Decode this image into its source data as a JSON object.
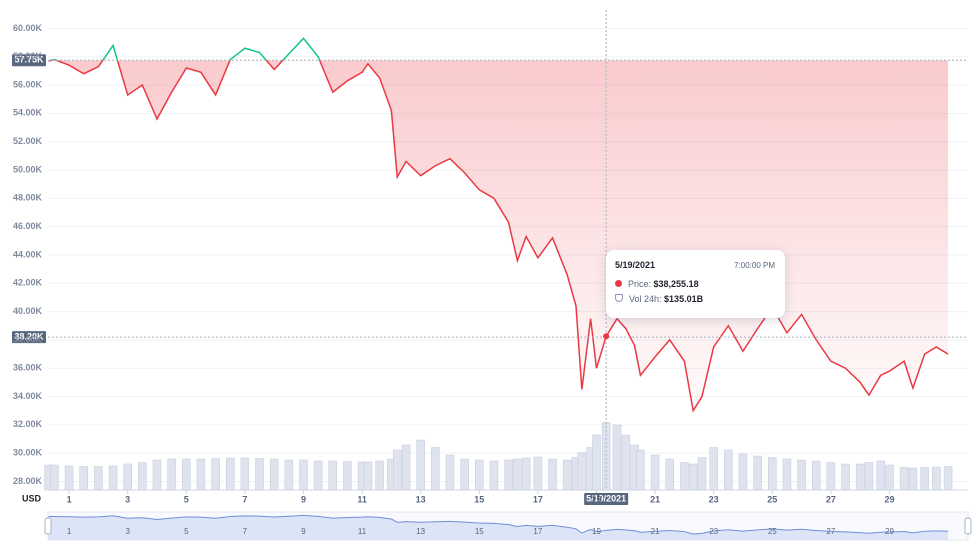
{
  "chart_data": {
    "type": "line",
    "y_axis_label": "USD",
    "x": [
      0.3,
      0.5,
      1,
      1.5,
      2,
      2.5,
      3,
      3.5,
      4,
      4.5,
      5,
      5.5,
      6,
      6.5,
      7,
      7.5,
      8,
      8.5,
      9,
      9.5,
      10,
      10.5,
      11,
      11.2,
      11.6,
      12,
      12.2,
      12.5,
      13,
      13.5,
      14,
      14.5,
      15,
      15.5,
      16,
      16.3,
      16.6,
      17,
      17.5,
      18,
      18.3,
      18.5,
      18.8,
      19,
      19.33,
      19.7,
      20,
      20.3,
      20.5,
      21,
      21.5,
      22,
      22.3,
      22.6,
      23,
      23.5,
      24,
      24.5,
      25,
      25.5,
      26,
      26.5,
      27,
      27.5,
      28,
      28.3,
      28.7,
      29,
      29.5,
      29.8,
      30.2,
      30.6,
      31
    ],
    "series": [
      {
        "name": "Price:",
        "color": "#ea3943",
        "up_color": "#16c784",
        "values": [
          57700,
          57800,
          57400,
          56800,
          57300,
          58800,
          55300,
          56000,
          53600,
          55500,
          57200,
          56900,
          55300,
          57800,
          58600,
          58300,
          57100,
          58200,
          59300,
          58000,
          55500,
          56300,
          56900,
          57500,
          56500,
          54200,
          49500,
          50600,
          49600,
          50300,
          50800,
          49800,
          48600,
          48000,
          46300,
          43600,
          45300,
          43800,
          45200,
          42600,
          40400,
          34500,
          39500,
          36000,
          38255.18,
          39500,
          38800,
          37600,
          35500,
          36800,
          38000,
          36500,
          33000,
          34000,
          37500,
          39000,
          37200,
          38800,
          40300,
          38500,
          39800,
          38000,
          36500,
          36000,
          35000,
          34100,
          35500,
          35800,
          36500,
          34600,
          37000,
          37500,
          37000
        ]
      },
      {
        "name": "Vol 24h:",
        "color": "#dfe3ee",
        "axis": "y2",
        "values": [
          50,
          50,
          48,
          47,
          47,
          48,
          52,
          55,
          60,
          62,
          62,
          62,
          63,
          64,
          64,
          63,
          62,
          60,
          60,
          58,
          58,
          57,
          56,
          56,
          58,
          62,
          80,
          90,
          100,
          85,
          70,
          62,
          60,
          58,
          60,
          62,
          64,
          66,
          62,
          60,
          65,
          75,
          85,
          110,
          135.01,
          130,
          110,
          90,
          80,
          70,
          62,
          55,
          52,
          65,
          85,
          80,
          72,
          68,
          65,
          62,
          60,
          58,
          55,
          52,
          52,
          55,
          58,
          50,
          45,
          44,
          45,
          46,
          47
        ]
      }
    ],
    "xlim": [
      0.28,
      31.68
    ],
    "xticks": [
      1,
      3,
      5,
      7,
      9,
      11,
      13,
      15,
      17,
      19,
      21,
      23,
      25,
      27,
      29
    ],
    "ylim": [
      27400,
      61300
    ],
    "yticks": [
      {
        "value": 28000,
        "label": "28.00K"
      },
      {
        "value": 30000,
        "label": "30.00K"
      },
      {
        "value": 32000,
        "label": "32.00K"
      },
      {
        "value": 34000,
        "label": "34.00K"
      },
      {
        "value": 36000,
        "label": "36.00K"
      },
      {
        "value": 38000,
        "label": "38.00K"
      },
      {
        "value": 40000,
        "label": "40.00K"
      },
      {
        "value": 42000,
        "label": "42.00K"
      },
      {
        "value": 44000,
        "label": "44.00K"
      },
      {
        "value": 46000,
        "label": "46.00K"
      },
      {
        "value": 48000,
        "label": "48.00K"
      },
      {
        "value": 50000,
        "label": "50.00K"
      },
      {
        "value": 52000,
        "label": "52.00K"
      },
      {
        "value": 54000,
        "label": "54.00K"
      },
      {
        "value": 56000,
        "label": "56.00K"
      },
      {
        "value": 58000,
        "label": "58.00K"
      },
      {
        "value": 60000,
        "label": "60.00K"
      }
    ],
    "y2lim": [
      0,
      960
    ],
    "grid": true,
    "reference": {
      "value": 57750,
      "label": "57.75K"
    },
    "crosshair": {
      "x": 19.33,
      "x_label": "5/19/2021",
      "y": 38200,
      "y_label": "38.20K"
    },
    "tooltip": {
      "date": "5/19/2021",
      "time": "7:00:00 PM",
      "price": "$38,255.18",
      "volume": "$135.01B"
    }
  }
}
